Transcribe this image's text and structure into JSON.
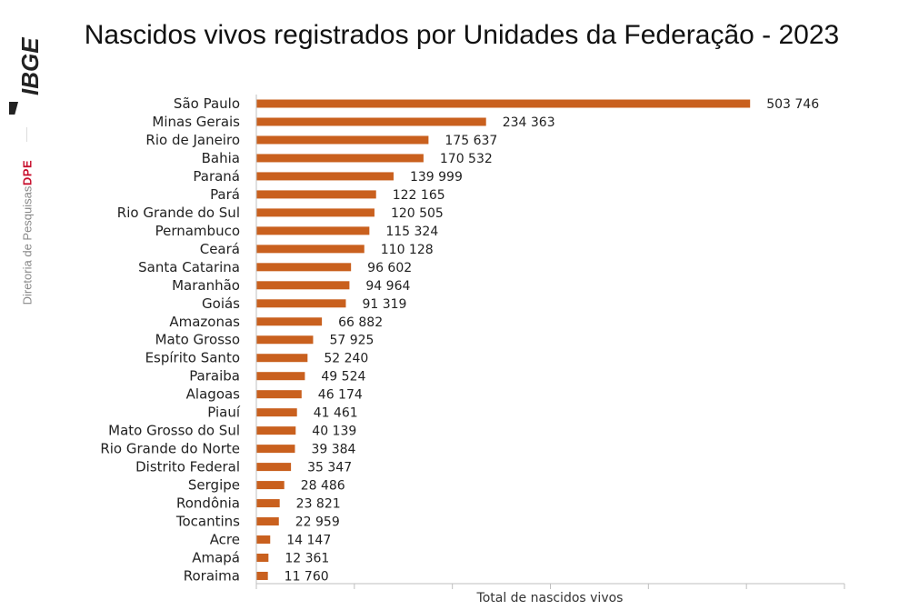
{
  "title": "Nascidos vivos registrados por Unidades da Federação - 2023",
  "brand": {
    "logo_text": "IBGE",
    "dpe": "DPE",
    "diretoria": "Diretoria de Pesquisas"
  },
  "colors": {
    "bar": "#c9601e",
    "text": "#222222",
    "axis": "#bfbfbf",
    "dpe": "#c8102e",
    "logo": "#222222"
  },
  "chart_data": {
    "type": "bar",
    "orientation": "horizontal",
    "title": "Nascidos vivos registrados por Unidades da Federação - 2023",
    "xlabel": "Total de nascidos vivos",
    "ylabel": "",
    "xlim": [
      0,
      600000
    ],
    "grid": false,
    "legend": "none",
    "categories": [
      "São Paulo",
      "Minas Gerais",
      "Rio de Janeiro",
      "Bahia",
      "Paraná",
      "Pará",
      "Rio Grande do Sul",
      "Pernambuco",
      "Ceará",
      "Santa Catarina",
      "Maranhão",
      "Goiás",
      "Amazonas",
      "Mato Grosso",
      "Espírito Santo",
      "Paraiba",
      "Alagoas",
      "Piauí",
      "Mato Grosso do Sul",
      "Rio Grande do Norte",
      "Distrito Federal",
      "Sergipe",
      "Rondônia",
      "Tocantins",
      "Acre",
      "Amapá",
      "Roraima"
    ],
    "values": [
      503746,
      234363,
      175637,
      170532,
      139999,
      122165,
      120505,
      115324,
      110128,
      96602,
      94964,
      91319,
      66882,
      57925,
      52240,
      49524,
      46174,
      41461,
      40139,
      39384,
      35347,
      28486,
      23821,
      22959,
      14147,
      12361,
      11760
    ],
    "value_labels": [
      "503 746",
      "234 363",
      "175 637",
      "170 532",
      "139 999",
      "122 165",
      "120 505",
      "115 324",
      "110 128",
      "96 602",
      "94 964",
      "91 319",
      "66 882",
      "57 925",
      "52 240",
      "49 524",
      "46 174",
      "41 461",
      "40 139",
      "39 384",
      "35 347",
      "28 486",
      "23 821",
      "22 959",
      "14 147",
      "12 361",
      "11 760"
    ]
  }
}
